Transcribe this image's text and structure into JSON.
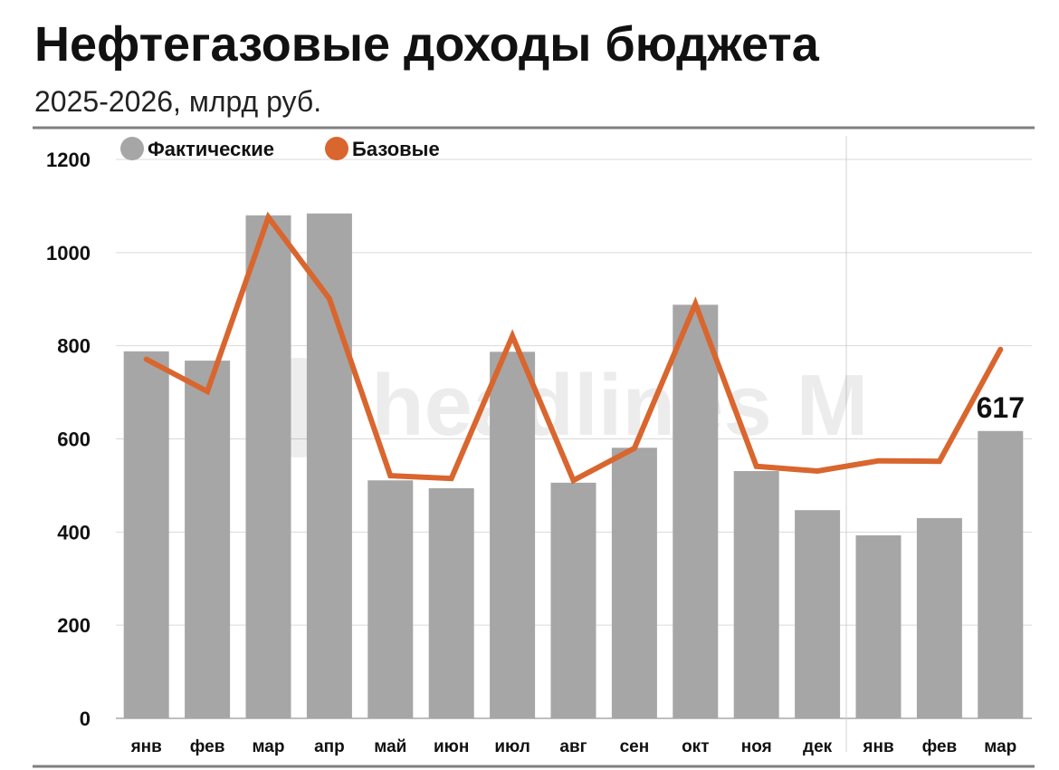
{
  "header": {
    "title": "Нефтегазовые доходы бюджета",
    "subtitle": "2025-2026, млрд руб."
  },
  "watermark": "headlines M",
  "colors": {
    "bar": "#a6a6a6",
    "line": "#d9662e",
    "grid": "#d9d9d9",
    "rule": "#7f7f7f",
    "text": "#111111"
  },
  "chart_data": {
    "type": "bar",
    "categories": [
      "янв",
      "фев",
      "мар",
      "апр",
      "май",
      "июн",
      "июл",
      "авг",
      "сен",
      "окт",
      "ноя",
      "дек",
      "янв",
      "фев",
      "мар"
    ],
    "series": [
      {
        "name": "Фактические",
        "type": "bar",
        "values": [
          788,
          768,
          1080,
          1084,
          511,
          494,
          787,
          506,
          581,
          888,
          531,
          447,
          393,
          430,
          617
        ]
      },
      {
        "name": "Базовые",
        "type": "line",
        "values": [
          771,
          702,
          1076,
          901,
          521,
          515,
          821,
          511,
          580,
          890,
          541,
          531,
          553,
          552,
          792
        ]
      }
    ],
    "yticks": [
      0,
      200,
      400,
      600,
      800,
      1000,
      1200
    ],
    "ylim": [
      0,
      1200
    ],
    "grid": true,
    "legend": "top-left",
    "annotations": [
      {
        "category_index": 14,
        "series": "Фактические",
        "text": "617"
      }
    ]
  }
}
